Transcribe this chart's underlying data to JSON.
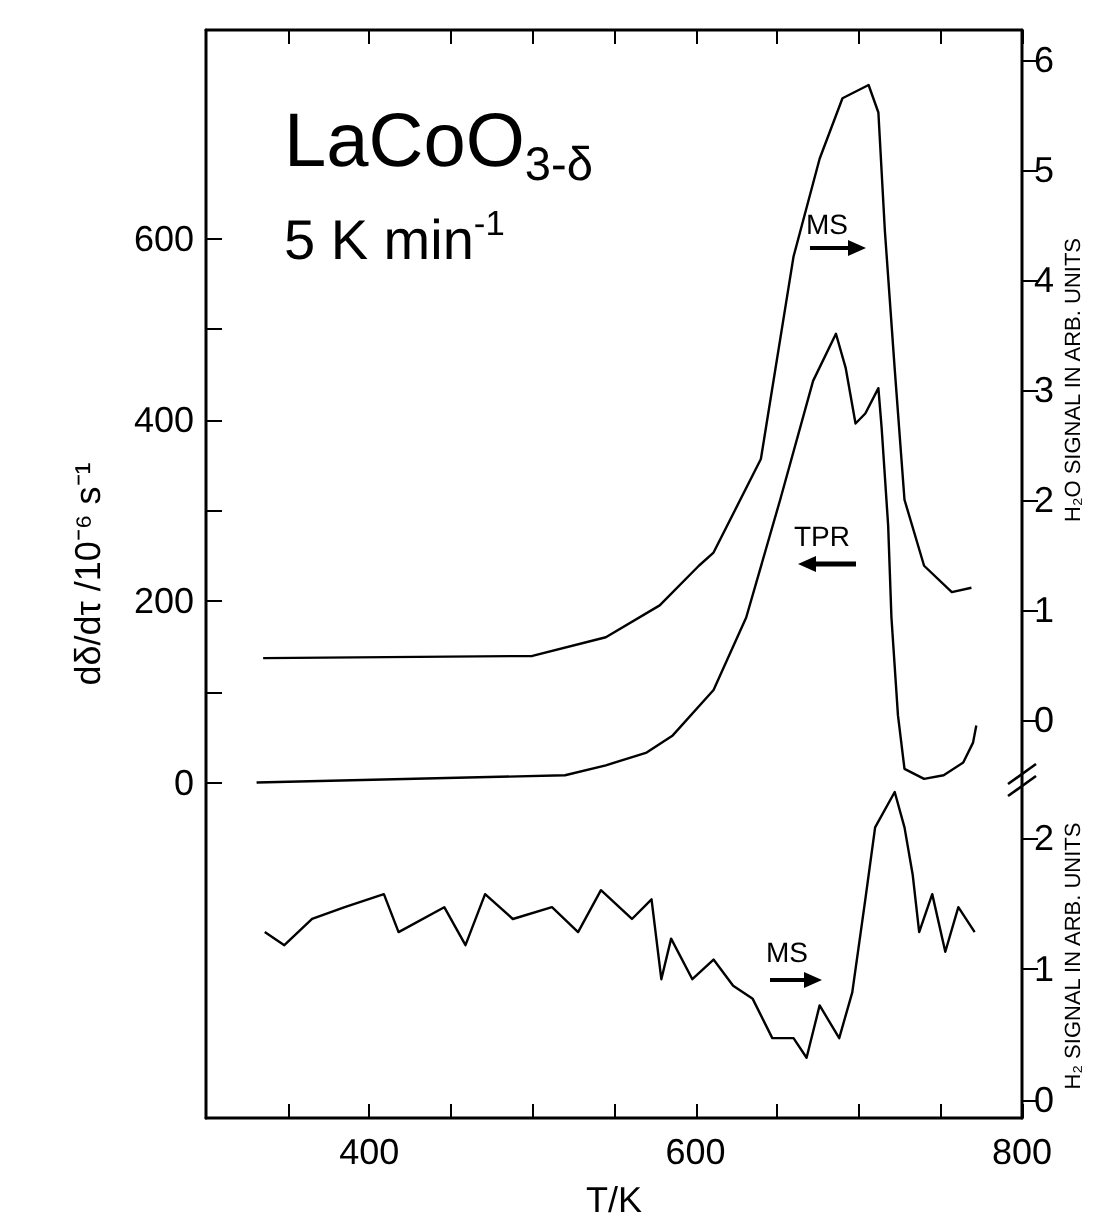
{
  "chart_data": {
    "type": "line",
    "xlabel": "T/K",
    "ylabel": "dδ/dτ /10⁻⁶ s⁻¹",
    "y2label": "H₂O SIGNAL IN ARB. UNITS",
    "y3label": "H₂ SIGNAL IN ARB. UNITS",
    "annotations": [
      "LaCoO$_{3-δ}$",
      "5 K min$^{-1}$",
      "MS",
      "TPR",
      "MS"
    ],
    "xlim": [
      300,
      800
    ],
    "xticks": [
      {
        "value": 350,
        "label": null
      },
      400,
      {
        "value": 450,
        "label": null
      },
      {
        "value": 500,
        "label": null
      },
      {
        "value": 550,
        "label": null
      },
      600,
      {
        "value": 650,
        "label": null
      },
      {
        "value": 700,
        "label": null
      },
      {
        "value": 750,
        "label": null
      },
      800
    ],
    "ylim": [
      -370,
      830
    ],
    "yticks": [
      0,
      {
        "value": 100,
        "label": null
      },
      200,
      {
        "value": 300,
        "label": null
      },
      400,
      {
        "value": 500,
        "label": null
      },
      600
    ],
    "y2lim": [
      -3.62,
      6.27
    ],
    "y2ticks": [
      0,
      1,
      2,
      3,
      4,
      5,
      6
    ],
    "y3lim": [
      -0.14,
      8.17
    ],
    "y3ticks": [
      0,
      1,
      2
    ],
    "grid": false,
    "marker": "none",
    "line_style": "solid",
    "series": [
      {
        "color": "#000000",
        "axis": "y2",
        "x": [
          335,
          500,
          545,
          578,
          602,
          611,
          640,
          660,
          676,
          690,
          706,
          712,
          716,
          722,
          728,
          740,
          757,
          769
        ],
        "values": [
          0.56,
          0.58,
          0.75,
          1.04,
          1.4,
          1.52,
          2.37,
          4.21,
          5.1,
          5.65,
          5.77,
          5.52,
          4.44,
          3.19,
          2.0,
          1.4,
          1.16,
          1.2
        ]
      },
      {
        "color": "#000000",
        "x": [
          331,
          520,
          545,
          570,
          586,
          611,
          631,
          652,
          672,
          686,
          692,
          698,
          704,
          712,
          714,
          718,
          720,
          724,
          728,
          740,
          752,
          764,
          770,
          772
        ],
        "values": [
          0,
          8,
          19,
          33,
          52,
          102,
          182,
          313,
          443,
          495,
          457,
          396,
          407,
          435,
          391,
          283,
          182,
          74,
          15,
          4,
          8,
          22,
          44,
          63
        ]
      },
      {
        "color": "#000000",
        "axis": "y3",
        "x": [
          336,
          348,
          365,
          385,
          409,
          418,
          446,
          459,
          471,
          488,
          512,
          528,
          542,
          561,
          573,
          579,
          585,
          598,
          611,
          623,
          635,
          647,
          660,
          668,
          676,
          688,
          696,
          704,
          710,
          722,
          728,
          733,
          737,
          745,
          753,
          761,
          771
        ],
        "values": [
          1.28,
          1.18,
          1.38,
          1.47,
          1.57,
          1.28,
          1.47,
          1.18,
          1.57,
          1.38,
          1.47,
          1.28,
          1.6,
          1.38,
          1.53,
          0.92,
          1.23,
          0.92,
          1.07,
          0.87,
          0.77,
          0.47,
          0.47,
          0.32,
          0.72,
          0.47,
          0.82,
          1.53,
          2.08,
          2.35,
          2.08,
          1.72,
          1.28,
          1.57,
          1.13,
          1.47,
          1.28
        ]
      }
    ]
  }
}
